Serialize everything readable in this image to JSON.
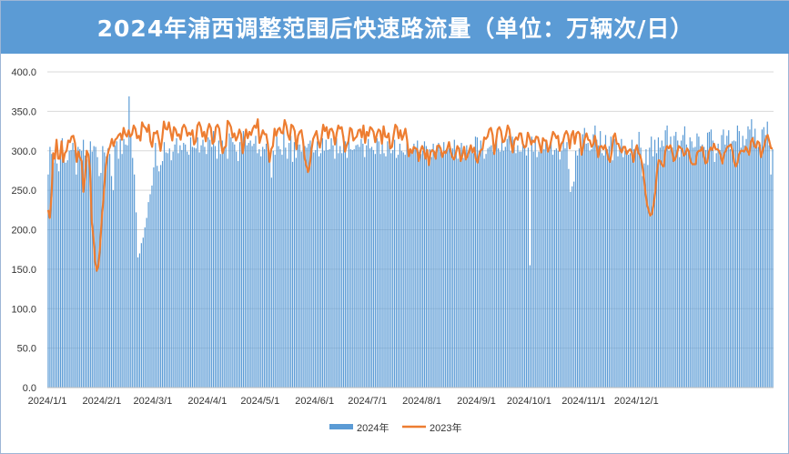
{
  "title": "2024年浦西调整范围后快速路流量（单位：万辆次/日）",
  "chart_data": {
    "type": "bar+line",
    "title": "2024年浦西调整范围后快速路流量（单位：万辆次/日）",
    "ylim": [
      0,
      400
    ],
    "ytick_labels": [
      "0.0",
      "50.0",
      "100.0",
      "150.0",
      "200.0",
      "250.0",
      "300.0",
      "350.0",
      "400.0"
    ],
    "xtick_labels": [
      "2024/1/1",
      "2024/2/1",
      "2024/3/1",
      "2024/4/1",
      "2024/5/1",
      "2024/6/1",
      "2024/7/1",
      "2024/8/1",
      "2024/9/1",
      "2024/10/1",
      "2024/11/1",
      "2024/12/1"
    ],
    "grid": true,
    "legend_position": "bottom",
    "series": [
      {
        "name": "2024年",
        "kind": "bar",
        "color": "#5b9bd5",
        "values": [
          270,
          305,
          296,
          285,
          292,
          284,
          274,
          302,
          316,
          290,
          285,
          288,
          300,
          301,
          310,
          301,
          270,
          305,
          302,
          300,
          314,
          294,
          289,
          296,
          312,
          299,
          306,
          305,
          292,
          268,
          272,
          306,
          298,
          293,
          303,
          296,
          268,
          250,
          307,
          312,
          290,
          315,
          296,
          315,
          308,
          307,
          369,
          321,
          291,
          270,
          222,
          165,
          170,
          183,
          190,
          203,
          215,
          235,
          245,
          256,
          279,
          310,
          281,
          274,
          282,
          287,
          311,
          298,
          297,
          303,
          288,
          299,
          308,
          316,
          297,
          307,
          301,
          310,
          308,
          299,
          295,
          317,
          305,
          304,
          303,
          317,
          298,
          307,
          314,
          305,
          296,
          317,
          314,
          305,
          325,
          306,
          290,
          313,
          296,
          313,
          305,
          309,
          290,
          322,
          317,
          311,
          308,
          299,
          287,
          311,
          311,
          325,
          314,
          307,
          310,
          313,
          306,
          309,
          319,
          297,
          302,
          293,
          305,
          302,
          309,
          311,
          288,
          266,
          300,
          295,
          318,
          306,
          302,
          295,
          326,
          304,
          290,
          310,
          319,
          286,
          311,
          291,
          308,
          308,
          299,
          315,
          306,
          304,
          309,
          313,
          301,
          298,
          301,
          312,
          293,
          297,
          316,
          300,
          314,
          301,
          302,
          316,
          307,
          290,
          316,
          297,
          306,
          297,
          319,
          312,
          291,
          317,
          302,
          301,
          302,
          307,
          308,
          305,
          315,
          309,
          292,
          307,
          315,
          303,
          305,
          301,
          296,
          316,
          312,
          296,
          314,
          297,
          293,
          312,
          307,
          297,
          301,
          314,
          291,
          295,
          309,
          300,
          298,
          295,
          315,
          302,
          298,
          296,
          309,
          305,
          313,
          299,
          296,
          300,
          312,
          306,
          291,
          302,
          292,
          309,
          299,
          307,
          310,
          299,
          293,
          311,
          301,
          301,
          303,
          303,
          303,
          314,
          301,
          290,
          304,
          310,
          291,
          298,
          307,
          297,
          306,
          302,
          297,
          318,
          317,
          300,
          313,
          301,
          290,
          296,
          303,
          305,
          307,
          299,
          308,
          319,
          303,
          299,
          314,
          300,
          305,
          315,
          319,
          300,
          318,
          305,
          297,
          307,
          299,
          299,
          312,
          307,
          294,
          304,
          155,
          318,
          299,
          317,
          292,
          299,
          299,
          309,
          302,
          313,
          304,
          304,
          314,
          295,
          301,
          303,
          300,
          289,
          300,
          315,
          303,
          311,
          277,
          248,
          255,
          261,
          300,
          294,
          303,
          310,
          321,
          329,
          309,
          310,
          300,
          302,
          321,
          332,
          314,
          307,
          325,
          297,
          294,
          320,
          302,
          306,
          318,
          288,
          315,
          309,
          293,
          305,
          315,
          292,
          300,
          301,
          295,
          297,
          314,
          302,
          298,
          308,
          324,
          304,
          268,
          284,
          302,
          282,
          304,
          318,
          293,
          314,
          297,
          317,
          304,
          313,
          306,
          326,
          332,
          300,
          318,
          304,
          319,
          324,
          313,
          292,
          313,
          320,
          331,
          308,
          302,
          317,
          312,
          304,
          305,
          322,
          318,
          306,
          308,
          305,
          301,
          323,
          324,
          327,
          313,
          286,
          297,
          309,
          301,
          320,
          327,
          308,
          319,
          326,
          302,
          312,
          313,
          312,
          332,
          325,
          304,
          319,
          307,
          315,
          331,
          327,
          340,
          318,
          328,
          306,
          305,
          308,
          327,
          330,
          320,
          337,
          307,
          270,
          302
        ]
      },
      {
        "name": "2023年",
        "kind": "line",
        "color": "#ed7d31",
        "values": [
          225,
          215,
          243,
          297,
          290,
          314,
          290,
          290,
          312,
          286,
          297,
          300,
          313,
          311,
          318,
          319,
          310,
          286,
          299,
          291,
          287,
          248,
          267,
          300,
          295,
          275,
          210,
          190,
          160,
          148,
          155,
          180,
          215,
          240,
          272,
          290,
          300,
          306,
          315,
          306,
          314,
          316,
          320,
          322,
          314,
          329,
          321,
          318,
          326,
          318,
          321,
          332,
          328,
          316,
          319,
          313,
          336,
          331,
          329,
          324,
          333,
          312,
          305,
          323,
          322,
          325,
          314,
          300,
          316,
          337,
          328,
          327,
          336,
          324,
          313,
          330,
          327,
          319,
          321,
          314,
          329,
          333,
          329,
          319,
          323,
          320,
          326,
          308,
          312,
          332,
          336,
          330,
          318,
          324,
          312,
          326,
          334,
          329,
          309,
          312,
          330,
          333,
          328,
          310,
          297,
          304,
          306,
          338,
          335,
          330,
          317,
          322,
          313,
          318,
          327,
          321,
          297,
          313,
          327,
          316,
          324,
          320,
          328,
          332,
          329,
          340,
          310,
          318,
          326,
          321,
          321,
          308,
          286,
          302,
          306,
          328,
          319,
          327,
          329,
          323,
          322,
          339,
          332,
          320,
          314,
          333,
          331,
          325,
          302,
          319,
          324,
          326,
          312,
          290,
          281,
          273,
          282,
          301,
          315,
          320,
          325,
          312,
          304,
          317,
          333,
          325,
          330,
          316,
          327,
          328,
          323,
          308,
          322,
          332,
          328,
          330,
          317,
          299,
          307,
          312,
          329,
          327,
          313,
          316,
          318,
          326,
          327,
          317,
          332,
          310,
          324,
          319,
          330,
          328,
          324,
          311,
          321,
          327,
          325,
          309,
          331,
          318,
          317,
          322,
          303,
          305,
          320,
          333,
          330,
          316,
          326,
          314,
          320,
          328,
          314,
          293,
          302,
          297,
          305,
          303,
          302,
          287,
          300,
          306,
          301,
          290,
          301,
          282,
          298,
          301,
          299,
          290,
          306,
          307,
          303,
          292,
          299,
          297,
          303,
          311,
          299,
          292,
          289,
          296,
          306,
          302,
          287,
          294,
          305,
          289,
          293,
          300,
          307,
          298,
          304,
          290,
          285,
          295,
          301,
          302,
          317,
          315,
          318,
          327,
          329,
          320,
          296,
          311,
          327,
          330,
          325,
          311,
          312,
          320,
          332,
          327,
          310,
          298,
          313,
          317,
          314,
          322,
          322,
          309,
          304,
          306,
          323,
          317,
          308,
          313,
          311,
          318,
          317,
          308,
          298,
          316,
          313,
          313,
          299,
          304,
          314,
          324,
          321,
          316,
          319,
          300,
          309,
          312,
          321,
          325,
          320,
          303,
          320,
          325,
          309,
          322,
          324,
          321,
          295,
          305,
          316,
          322,
          314,
          313,
          305,
          308,
          319,
          307,
          292,
          305,
          306,
          302,
          307,
          300,
          290,
          286,
          298,
          318,
          322,
          309,
          309,
          302,
          298,
          305,
          305,
          296,
          300,
          302,
          298,
          286,
          300,
          307,
          297,
          294,
          285,
          270,
          250,
          233,
          225,
          218,
          220,
          232,
          248,
          273,
          288,
          287,
          282,
          280,
          300,
          306,
          303,
          307,
          300,
          287,
          290,
          297,
          306,
          304,
          302,
          294,
          296,
          303,
          299,
          287,
          283,
          283,
          283,
          298,
          300,
          300,
          305,
          293,
          284,
          286,
          299,
          304,
          301,
          309,
          302,
          302,
          300,
          294,
          284,
          296,
          300,
          305,
          306,
          308,
          300,
          286,
          280,
          285,
          296,
          300,
          300,
          299,
          305,
          300,
          295,
          311,
          316,
          306,
          304,
          312,
          310,
          292,
          300,
          307,
          316,
          320,
          312,
          303,
          303
        ]
      }
    ]
  }
}
